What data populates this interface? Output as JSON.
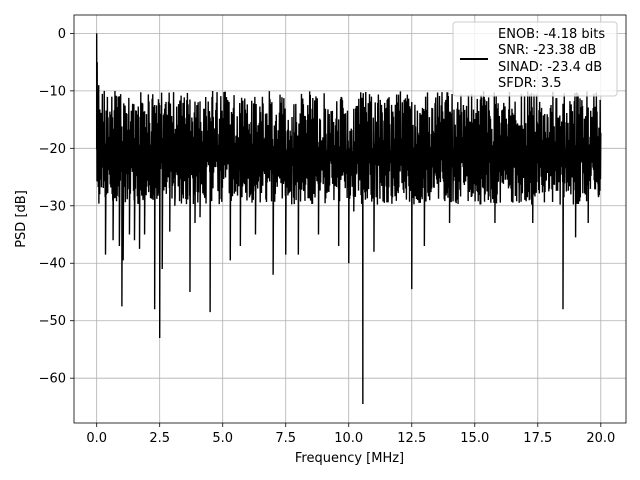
{
  "chart_data": {
    "type": "line",
    "title": "",
    "xlabel": "Frequency [MHz]",
    "ylabel": "PSD [dB]",
    "xlim": [
      -0.9,
      21.0
    ],
    "ylim": [
      -67.8,
      3.2
    ],
    "xticks": [
      0.0,
      2.5,
      5.0,
      7.5,
      10.0,
      12.5,
      15.0,
      17.5,
      20.0
    ],
    "xtick_labels": [
      "0.0",
      "2.5",
      "5.0",
      "7.5",
      "10.0",
      "12.5",
      "15.0",
      "17.5",
      "20.0"
    ],
    "yticks": [
      0,
      -10,
      -20,
      -30,
      -40,
      -50,
      -60
    ],
    "ytick_labels": [
      "0",
      "−10",
      "−20",
      "−30",
      "−40",
      "−50",
      "−60"
    ],
    "grid": true,
    "legend_position": "top-right",
    "legend_lines": [
      "ENOB: -4.18 bits",
      "SNR: -23.38 dB",
      "SINAD: -23.4 dB",
      "SFDR: 3.5"
    ],
    "series_color": "#000000",
    "series": [
      {
        "name": "ENOB: -4.18 bits",
        "x_start": 0.0,
        "x_end": 20.0,
        "noise_floor_mean": -19.0,
        "noise_floor_upper": -7.0,
        "noise_floor_lower": -28.0,
        "points": [
          [
            0.0,
            0.0
          ],
          [
            0.02,
            -5.0
          ],
          [
            0.05,
            -19.0
          ],
          [
            0.08,
            -9.0
          ],
          [
            0.12,
            -28.0
          ],
          [
            0.3,
            -10.0
          ],
          [
            0.35,
            -38.5
          ],
          [
            0.6,
            -11.0
          ],
          [
            0.65,
            -36.0
          ],
          [
            0.85,
            -11.0
          ],
          [
            0.9,
            -37.0
          ],
          [
            1.0,
            -47.5
          ],
          [
            1.05,
            -39.5
          ],
          [
            1.3,
            -35.0
          ],
          [
            1.5,
            -36.0
          ],
          [
            1.7,
            -37.5
          ],
          [
            1.9,
            -35.0
          ],
          [
            2.3,
            -48.0
          ],
          [
            2.5,
            -53.0
          ],
          [
            2.6,
            -41.0
          ],
          [
            2.9,
            -34.5
          ],
          [
            3.1,
            -30.0
          ],
          [
            3.7,
            -45.0
          ],
          [
            3.9,
            -33.0
          ],
          [
            4.1,
            -32.0
          ],
          [
            4.5,
            -48.5
          ],
          [
            5.3,
            -39.5
          ],
          [
            5.7,
            -37.0
          ],
          [
            6.3,
            -35.0
          ],
          [
            7.0,
            -42.0
          ],
          [
            7.5,
            -38.5
          ],
          [
            8.0,
            -38.5
          ],
          [
            8.8,
            -35.0
          ],
          [
            9.6,
            -37.0
          ],
          [
            10.0,
            -40.0
          ],
          [
            10.2,
            -31.0
          ],
          [
            10.56,
            -64.5
          ],
          [
            11.0,
            -38.0
          ],
          [
            12.5,
            -44.5
          ],
          [
            13.0,
            -37.0
          ],
          [
            14.0,
            -33.0
          ],
          [
            15.8,
            -33.0
          ],
          [
            17.3,
            -33.0
          ],
          [
            18.5,
            -48.0
          ],
          [
            19.0,
            -35.5
          ],
          [
            19.5,
            -33.0
          ],
          [
            19.9,
            -28.0
          ]
        ]
      }
    ]
  }
}
